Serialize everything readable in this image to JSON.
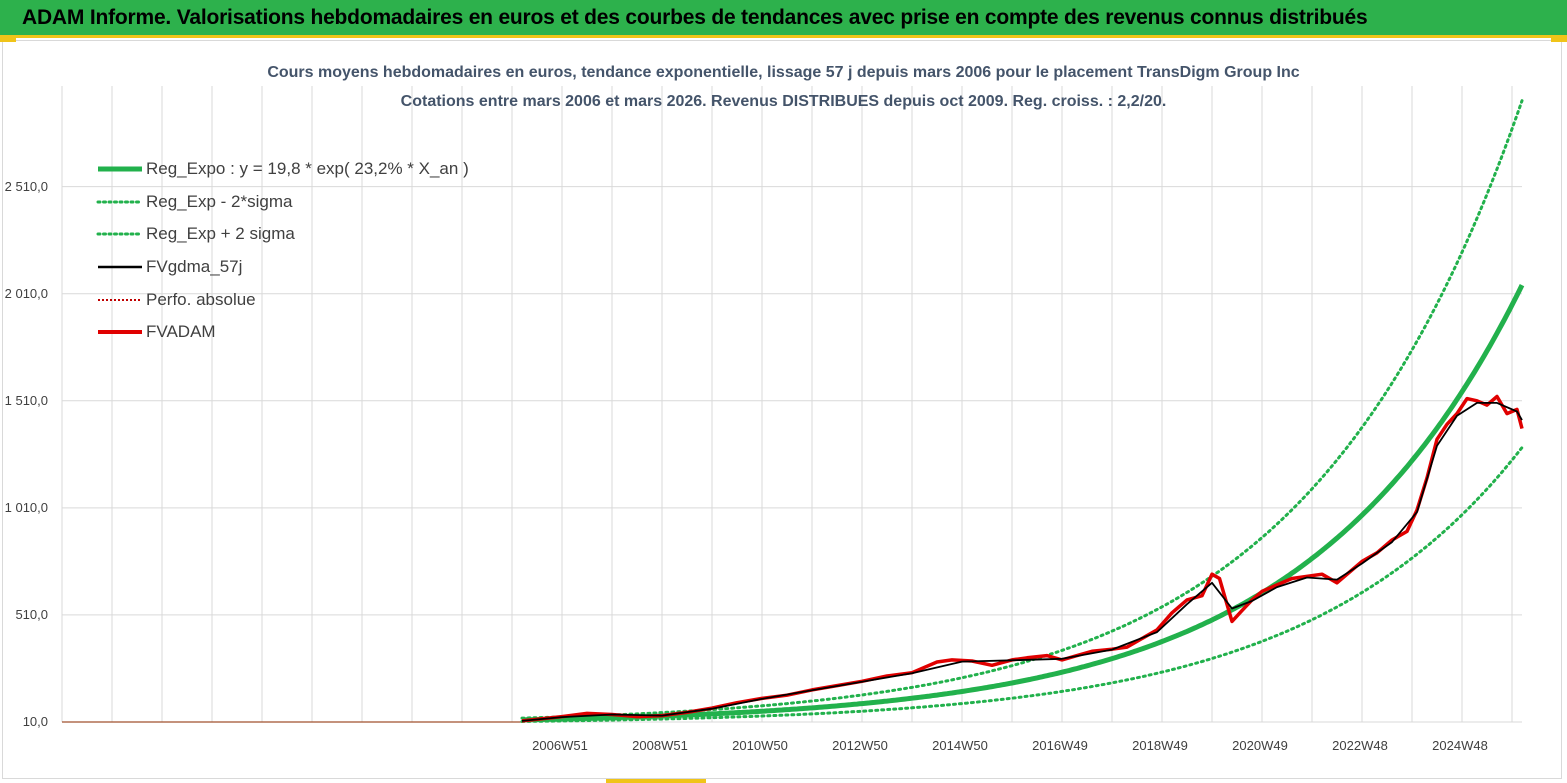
{
  "banner": {
    "title": "ADAM Informe. Valorisations hebdomadaires en euros et des courbes de tendances avec prise en compte des revenus connus distribués",
    "background": "#2db14c",
    "accent": "#f0c419"
  },
  "chart_data": {
    "type": "line",
    "title_line1": "Cours moyens hebdomadaires en euros, tendance exponentielle, lissage 57 j depuis mars 2006 pour le placement TransDigm Group Inc",
    "title_line2": "Cotations entre mars 2006 et mars 2026. Revenus DISTRIBUES depuis oct 2009. Reg. croiss. : 2,2/20.",
    "xlabel": "",
    "ylabel": "",
    "y_ticks": [
      {
        "value": 10,
        "label": "10,0"
      },
      {
        "value": 510,
        "label": "510,0"
      },
      {
        "value": 1010,
        "label": "1 010,0"
      },
      {
        "value": 1510,
        "label": "1 510,0"
      },
      {
        "value": 2010,
        "label": "2 010,0"
      },
      {
        "value": 2510,
        "label": "2 510,0"
      }
    ],
    "ylim": [
      10,
      2980
    ],
    "xlim": [
      1997.0,
      2026.2
    ],
    "x_ticks": [
      {
        "value": 2006.96,
        "label": "2006W51"
      },
      {
        "value": 2008.96,
        "label": "2008W51"
      },
      {
        "value": 2010.96,
        "label": "2010W50"
      },
      {
        "value": 2012.96,
        "label": "2012W50"
      },
      {
        "value": 2014.96,
        "label": "2014W50"
      },
      {
        "value": 2016.96,
        "label": "2016W49"
      },
      {
        "value": 2018.96,
        "label": "2018W49"
      },
      {
        "value": 2020.96,
        "label": "2020W49"
      },
      {
        "value": 2022.96,
        "label": "2022W48"
      },
      {
        "value": 2024.96,
        "label": "2024W48"
      }
    ],
    "grid": true,
    "legend_position": "top-left",
    "legend": [
      {
        "name": "Reg_Expo : y = 19,8 * exp( 23,2% *  X_an )",
        "color": "#22b14c",
        "style": "solid-thick"
      },
      {
        "name": "Reg_Exp - 2*sigma",
        "color": "#22b14c",
        "style": "dotted"
      },
      {
        "name": "Reg_Exp + 2 sigma",
        "color": "#22b14c",
        "style": "dotted"
      },
      {
        "name": "FVgdma_57j",
        "color": "#000000",
        "style": "solid"
      },
      {
        "name": "Perfo. absolue",
        "color": "#c00000",
        "style": "dotted"
      },
      {
        "name": "FVADAM",
        "color": "#e00000",
        "style": "solid-thick"
      }
    ],
    "baseline": {
      "name": "Perfo. absolue",
      "x": [
        1997.0,
        2006.2
      ],
      "y": [
        10,
        10
      ],
      "color": "#a0522d"
    },
    "regression": {
      "a": 19.8,
      "rate": 0.232,
      "x0": 2006.2,
      "upper_factor": 1.42,
      "lower_factor": 0.63
    },
    "series": [
      {
        "name": "FVADAM",
        "color": "#e00000",
        "x": [
          2006.2,
          2006.6,
          2007.0,
          2007.5,
          2008.0,
          2008.5,
          2009.0,
          2009.5,
          2010.0,
          2010.5,
          2011.0,
          2011.5,
          2012.0,
          2012.5,
          2013.0,
          2013.5,
          2014.0,
          2014.5,
          2014.8,
          2015.2,
          2015.6,
          2016.0,
          2016.3,
          2016.7,
          2017.0,
          2017.3,
          2017.6,
          2018.0,
          2018.3,
          2018.6,
          2018.9,
          2019.2,
          2019.5,
          2019.8,
          2020.0,
          2020.15,
          2020.25,
          2020.4,
          2020.6,
          2020.8,
          2021.0,
          2021.3,
          2021.6,
          2021.9,
          2022.2,
          2022.5,
          2022.8,
          2023.0,
          2023.3,
          2023.6,
          2023.9,
          2024.1,
          2024.3,
          2024.5,
          2024.7,
          2024.9,
          2025.1,
          2025.3,
          2025.5,
          2025.7,
          2025.9,
          2026.1,
          2026.2
        ],
        "y": [
          15,
          25,
          35,
          50,
          45,
          35,
          40,
          55,
          75,
          100,
          120,
          135,
          160,
          180,
          200,
          225,
          240,
          290,
          300,
          295,
          275,
          300,
          310,
          320,
          300,
          320,
          340,
          350,
          360,
          400,
          440,
          520,
          580,
          600,
          700,
          680,
          600,
          480,
          530,
          580,
          620,
          650,
          680,
          690,
          700,
          660,
          720,
          760,
          800,
          860,
          900,
          1000,
          1150,
          1330,
          1400,
          1450,
          1520,
          1510,
          1490,
          1530,
          1450,
          1470,
          1380
        ]
      },
      {
        "name": "FVgdma_57j",
        "color": "#000000",
        "x": [
          2006.2,
          2007.0,
          2008.0,
          2009.0,
          2010.0,
          2011.0,
          2012.0,
          2013.0,
          2014.0,
          2015.0,
          2016.0,
          2017.0,
          2018.0,
          2018.9,
          2019.5,
          2020.0,
          2020.4,
          2020.8,
          2021.3,
          2021.9,
          2022.5,
          2023.0,
          2023.6,
          2024.1,
          2024.5,
          2024.9,
          2025.3,
          2025.7,
          2026.1,
          2026.2
        ],
        "y": [
          15,
          33,
          45,
          40,
          72,
          118,
          158,
          198,
          238,
          292,
          298,
          305,
          348,
          430,
          560,
          660,
          540,
          575,
          640,
          685,
          675,
          750,
          850,
          990,
          1300,
          1440,
          1500,
          1500,
          1460,
          1420
        ]
      }
    ]
  }
}
